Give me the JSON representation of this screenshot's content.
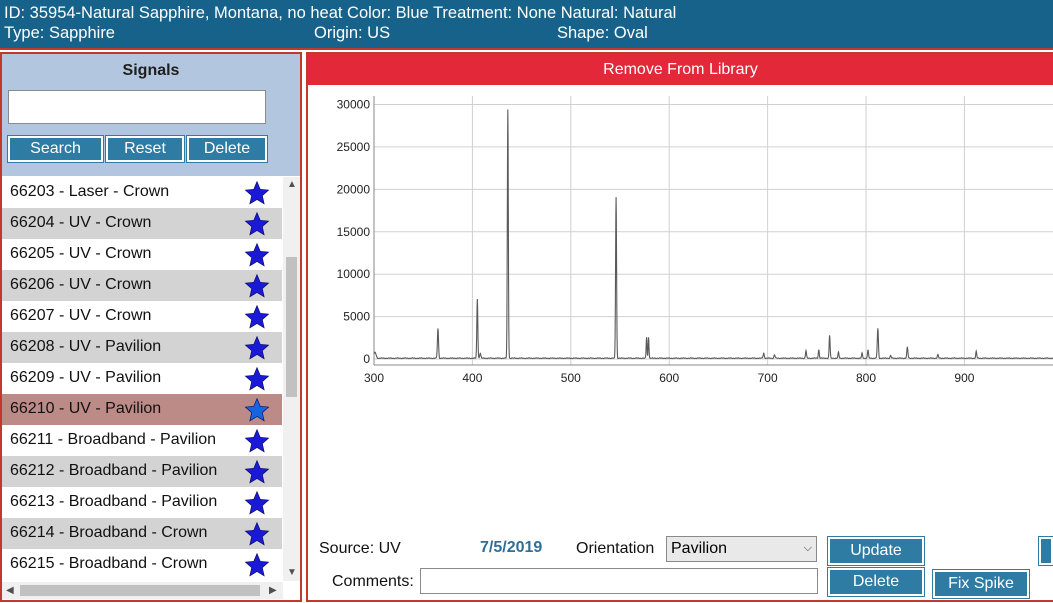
{
  "header": {
    "line1": "ID: 35954-Natural Sapphire, Montana, no heat Color: Blue Treatment: None Natural: Natural",
    "type": "Type: Sapphire",
    "origin": "Origin: US",
    "shape": "Shape: Oval"
  },
  "sidebar": {
    "title": "Signals",
    "search_value": "",
    "buttons": {
      "search": "Search",
      "reset": "Reset",
      "delete": "Delete"
    },
    "items": [
      {
        "label": "66203 - Laser - Crown",
        "starred": true,
        "selected": false
      },
      {
        "label": "66204 - UV - Crown",
        "starred": true,
        "selected": false
      },
      {
        "label": "66205 - UV - Crown",
        "starred": true,
        "selected": false
      },
      {
        "label": "66206 - UV - Crown",
        "starred": true,
        "selected": false
      },
      {
        "label": "66207 - UV - Crown",
        "starred": true,
        "selected": false
      },
      {
        "label": "66208 - UV - Pavilion",
        "starred": true,
        "selected": false
      },
      {
        "label": "66209 - UV - Pavilion",
        "starred": true,
        "selected": false
      },
      {
        "label": "66210 - UV - Pavilion",
        "starred": true,
        "selected": true
      },
      {
        "label": "66211 - Broadband - Pavilion",
        "starred": true,
        "selected": false
      },
      {
        "label": "66212 - Broadband - Pavilion",
        "starred": true,
        "selected": false
      },
      {
        "label": "66213 - Broadband - Pavilion",
        "starred": true,
        "selected": false
      },
      {
        "label": "66214 - Broadband - Crown",
        "starred": true,
        "selected": false
      },
      {
        "label": "66215 - Broadband - Crown",
        "starred": true,
        "selected": false
      }
    ],
    "colors": {
      "row_alt": "#d3d3d3",
      "row_selected": "#bc8b87",
      "star": "#1a1ad6",
      "star_selected": "#1565e0"
    }
  },
  "main": {
    "remove_label": "Remove From Library",
    "source_label": "Source: UV",
    "date": "7/5/2019",
    "orientation_label": "Orientation",
    "orientation_value": "Pavilion",
    "comments_label": "Comments:",
    "comments_value": "",
    "update_label": "Update",
    "delete_label": "Delete",
    "fix_spike_label": "Fix Spike"
  },
  "chart_data": {
    "type": "line",
    "title": "",
    "xlabel": "",
    "ylabel": "",
    "xlim": [
      300,
      990
    ],
    "ylim": [
      -700,
      31000
    ],
    "xticks": [
      300,
      400,
      500,
      600,
      700,
      800,
      900
    ],
    "yticks": [
      0,
      5000,
      10000,
      15000,
      20000,
      25000,
      30000
    ],
    "grid": true,
    "baseline": 100,
    "peaks": [
      {
        "x": 301,
        "y": 700,
        "w": 1.5
      },
      {
        "x": 365,
        "y": 3500,
        "w": 0.8
      },
      {
        "x": 405,
        "y": 7000,
        "w": 0.7
      },
      {
        "x": 408,
        "y": 600,
        "w": 0.8
      },
      {
        "x": 436,
        "y": 29300,
        "w": 0.7
      },
      {
        "x": 546,
        "y": 19000,
        "w": 0.7
      },
      {
        "x": 577,
        "y": 2500,
        "w": 0.6
      },
      {
        "x": 579,
        "y": 2500,
        "w": 0.6
      },
      {
        "x": 696,
        "y": 600,
        "w": 0.8
      },
      {
        "x": 707,
        "y": 400,
        "w": 0.8
      },
      {
        "x": 739,
        "y": 900,
        "w": 0.7
      },
      {
        "x": 752,
        "y": 1000,
        "w": 0.7
      },
      {
        "x": 763,
        "y": 2700,
        "w": 0.7
      },
      {
        "x": 772,
        "y": 700,
        "w": 0.7
      },
      {
        "x": 796,
        "y": 600,
        "w": 0.7
      },
      {
        "x": 802,
        "y": 1000,
        "w": 0.7
      },
      {
        "x": 812,
        "y": 3500,
        "w": 0.8
      },
      {
        "x": 825,
        "y": 300,
        "w": 0.8
      },
      {
        "x": 842,
        "y": 1300,
        "w": 0.8
      },
      {
        "x": 873,
        "y": 400,
        "w": 0.8
      },
      {
        "x": 912,
        "y": 800,
        "w": 0.7
      }
    ],
    "line_color": "#5a5a5a",
    "grid_color": "#d0d0d0"
  }
}
